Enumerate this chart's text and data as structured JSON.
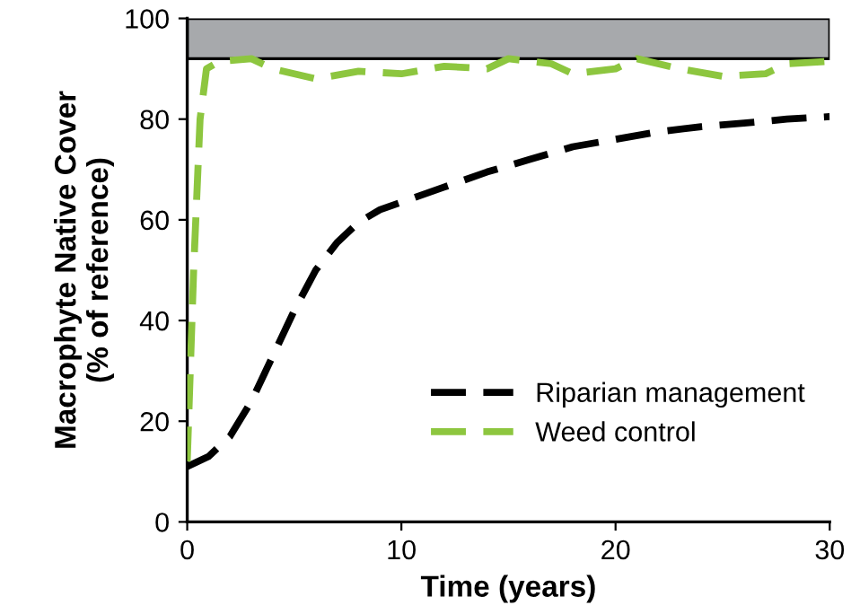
{
  "chart_data": {
    "type": "line",
    "xlabel": "Time (years)",
    "ylabel": "Macrophyte Native Cover\n(% of reference)",
    "xlim": [
      0,
      30
    ],
    "ylim": [
      0,
      100
    ],
    "xticks": [
      0,
      10,
      20,
      30
    ],
    "yticks": [
      0,
      20,
      40,
      60,
      80,
      100
    ],
    "grid": false,
    "legend": "bottom right",
    "line_style": "dashed",
    "marker": "none",
    "bands": [
      {
        "axis": "y",
        "from": 92,
        "to": 100,
        "color": "#a7a9ac"
      }
    ],
    "series": [
      {
        "name": "Riparian management",
        "color": "#000000",
        "x": [
          0,
          1,
          2,
          3,
          4,
          5,
          6,
          7,
          8,
          9,
          10,
          12,
          14,
          16,
          18,
          20,
          22,
          24,
          26,
          28,
          30
        ],
        "values": [
          11,
          13,
          17,
          24,
          33,
          42,
          50,
          55.5,
          59.5,
          62,
          63.5,
          66.5,
          69.5,
          72,
          74.5,
          76,
          77.5,
          78.5,
          79.2,
          80,
          80.5
        ]
      },
      {
        "name": "Weed control",
        "color": "#8dc63f",
        "x": [
          0,
          0.3,
          0.6,
          0.9,
          1.5,
          3,
          4,
          6,
          8,
          10,
          12,
          14,
          15,
          17,
          18,
          20,
          21,
          23,
          25,
          27,
          28,
          30
        ],
        "values": [
          12,
          50,
          80,
          90,
          91.5,
          92,
          90,
          88,
          89.5,
          89,
          90.5,
          90,
          92,
          91,
          89,
          90,
          92,
          90,
          88.5,
          89,
          91,
          91.5
        ]
      }
    ]
  }
}
